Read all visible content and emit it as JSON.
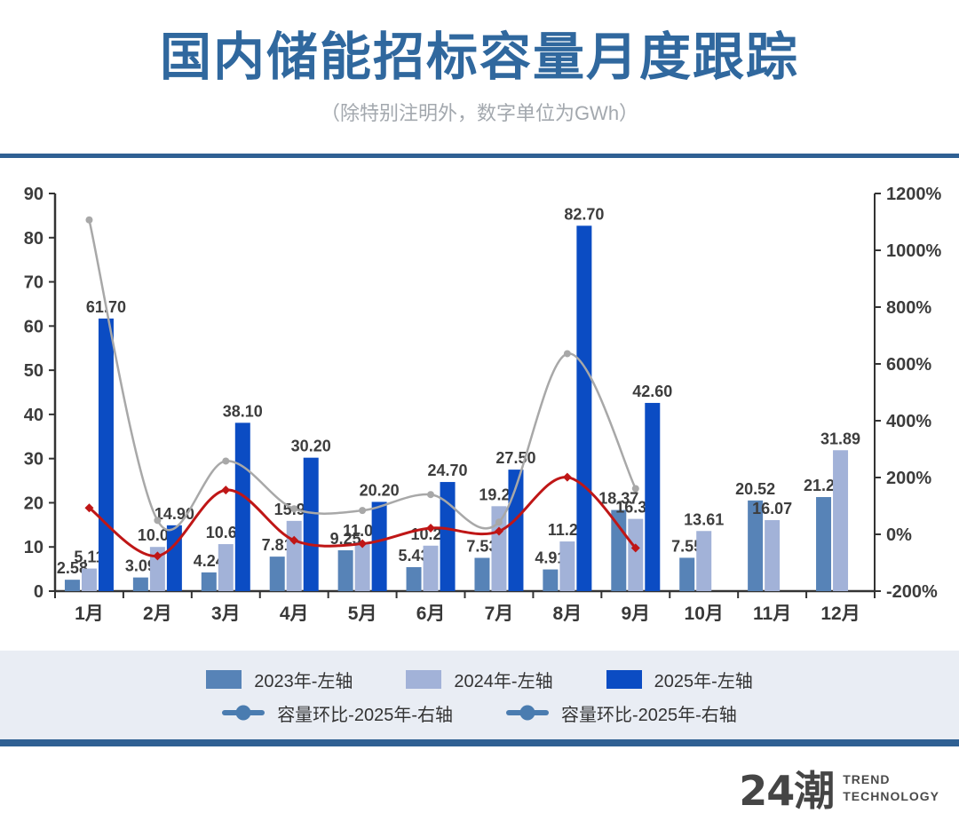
{
  "header": {
    "title": "国内储能招标容量月度跟踪",
    "subtitle": "（除特别注明外，数字单位为GWh）"
  },
  "colors": {
    "title": "#30689e",
    "subtitle_gray": "#a3a8ae",
    "divider": "#2f6093",
    "legend_bg": "#e9edf4",
    "axis": "#333333",
    "bar_2023": "#5783b7",
    "bar_2024": "#a2b2d8",
    "bar_2025": "#0b4cc3",
    "line_gray": "#a8a8a8",
    "line_red": "#bf1616",
    "legend_marker": "#4a7cb0",
    "logo": "#454545"
  },
  "chart_data": {
    "type": "bar",
    "subtype": "grouped bars with two smooth lines on secondary axis",
    "unit": "GWh",
    "title": "国内储能招标容量月度跟踪",
    "categories": [
      "1月",
      "2月",
      "3月",
      "4月",
      "5月",
      "6月",
      "7月",
      "8月",
      "9月",
      "10月",
      "11月",
      "12月"
    ],
    "left_axis": {
      "min": 0,
      "max": 90,
      "step": 10
    },
    "right_axis": {
      "min": -200,
      "max": 1200,
      "step": 200,
      "suffix": "%"
    },
    "grid": "off",
    "legend_position": "bottom",
    "series": [
      {
        "name": "2023年-左轴",
        "type": "bar",
        "axis": "left",
        "color_key": "bar_2023",
        "values": [
          2.58,
          3.09,
          4.24,
          7.81,
          9.25,
          5.43,
          7.53,
          4.91,
          18.37,
          7.55,
          20.52,
          21.29
        ]
      },
      {
        "name": "2024年-左轴",
        "type": "bar",
        "axis": "left",
        "color_key": "bar_2024",
        "values": [
          5.11,
          10.0,
          10.64,
          15.9,
          11.0,
          10.29,
          19.22,
          11.24,
          16.35,
          13.61,
          16.07,
          31.89
        ]
      },
      {
        "name": "2025年-左轴",
        "type": "bar",
        "axis": "left",
        "color_key": "bar_2025",
        "values": [
          61.7,
          14.9,
          38.1,
          30.2,
          20.2,
          24.7,
          27.5,
          82.7,
          42.6,
          null,
          null,
          null
        ]
      },
      {
        "name": "容量环比-2025年-右轴",
        "type": "line",
        "axis": "right",
        "color_key": "line_gray",
        "marker": "circle",
        "width": 2.5,
        "values": [
          1107,
          49,
          258,
          90,
          84,
          140,
          43,
          636,
          161,
          null,
          null,
          null
        ]
      },
      {
        "name": "容量环比-2025年-右轴",
        "type": "line",
        "axis": "right",
        "color_key": "line_red",
        "marker": "diamond",
        "width": 3,
        "values": [
          93,
          -76,
          156,
          -21,
          -33,
          22,
          11,
          201,
          -48,
          null,
          null,
          null
        ]
      }
    ],
    "legend": {
      "row1": [
        {
          "label": "2023年-左轴",
          "color_key": "bar_2023"
        },
        {
          "label": "2024年-左轴",
          "color_key": "bar_2024"
        },
        {
          "label": "2025年-左轴",
          "color_key": "bar_2025"
        }
      ],
      "row2": [
        {
          "label": "容量环比-2025年-右轴",
          "color_key": "legend_marker"
        },
        {
          "label": "容量环比-2025年-右轴",
          "color_key": "legend_marker"
        }
      ]
    }
  },
  "footer": {
    "logo_text": "24潮",
    "brand_line1": "TREND",
    "brand_line2": "TECHNOLOGY"
  }
}
